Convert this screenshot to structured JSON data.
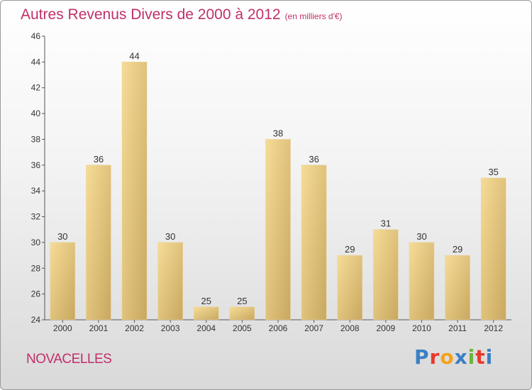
{
  "title": "Autres Revenus Divers de 2000 à 2012",
  "unit_note": "(en milliers d'€)",
  "place": "NOVACELLES",
  "logo": {
    "text": "Proxiti",
    "colors": [
      "#3a7fc4",
      "#e8382c",
      "#f4a21a",
      "#3a7fc4",
      "#6ab43e",
      "#e8382c",
      "#3a7fc4"
    ]
  },
  "colors": {
    "title": "#c0306a",
    "bar_light": "#f6dc97",
    "bar_dark": "#c9a860"
  },
  "chart_data": {
    "type": "bar",
    "categories": [
      "2000",
      "2001",
      "2002",
      "2003",
      "2004",
      "2005",
      "2006",
      "2007",
      "2008",
      "2009",
      "2010",
      "2011",
      "2012"
    ],
    "values": [
      30,
      36,
      44,
      30,
      25,
      25,
      38,
      36,
      29,
      31,
      30,
      29,
      35
    ],
    "ylim": [
      24,
      46
    ],
    "yticks": [
      24,
      26,
      28,
      30,
      32,
      34,
      36,
      38,
      40,
      42,
      44,
      46
    ],
    "grid": false,
    "title": "Autres Revenus Divers de 2000 à 2012",
    "xlabel": "",
    "ylabel": ""
  }
}
